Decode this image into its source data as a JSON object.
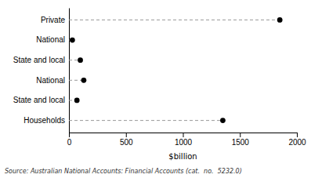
{
  "chart_data": {
    "type": "lollipop",
    "orientation": "horizontal",
    "categories": [
      "Private",
      "National",
      "State and local",
      "National",
      "State and local",
      "Households"
    ],
    "values": [
      1850,
      30,
      100,
      130,
      70,
      1350
    ],
    "xlim": [
      0,
      2000
    ],
    "xticks": [
      0,
      500,
      1000,
      1500,
      2000
    ],
    "xlabel": "$billion",
    "annotations": [
      "Source: Australian National Accounts: Financial Accounts (cat.  no.  5232.0)"
    ],
    "color": "#000000",
    "marker": "circle",
    "line_style": "dashed",
    "grid": false
  }
}
